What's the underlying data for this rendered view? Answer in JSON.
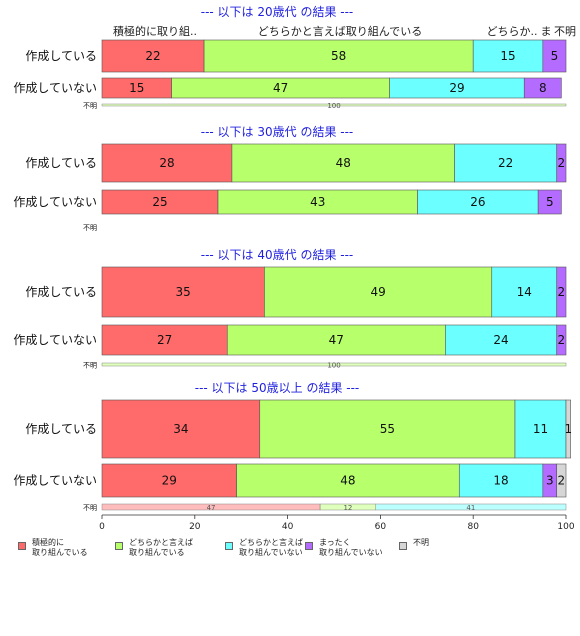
{
  "chart_data": {
    "type": "bar",
    "orientation": "horizontal",
    "stacked": true,
    "xlim": [
      0,
      100
    ],
    "xticks": [
      "0",
      "20",
      "40",
      "60",
      "80",
      "100"
    ],
    "category_names": [
      "積極的に取り組んでいる",
      "どちらかと言えば取り組んでいる",
      "どちらかと言えば取り組んでいない",
      "まったく取り組んでいない",
      "不明"
    ],
    "colors": [
      "#FF6B6B",
      "#B7FF6B",
      "#6BFFFF",
      "#B46BFF",
      "#D6D6D6"
    ],
    "header_labels": [
      "積極的に取り組..",
      "どちらかと言えば取り組んでいる",
      "どちらか..",
      "ま",
      "不明"
    ],
    "groups": [
      {
        "title": "--- 以下は 20歳代 の結果 ---",
        "rows": [
          {
            "label": "作成している",
            "values": [
              22,
              58,
              15,
              5,
              0
            ]
          },
          {
            "label": "作成していない",
            "values": [
              15,
              47,
              29,
              8,
              0
            ]
          }
        ],
        "unknown": {
          "label": "不明",
          "values": [
            0,
            100,
            0,
            0,
            0
          ]
        }
      },
      {
        "title": "--- 以下は 30歳代 の結果 ---",
        "rows": [
          {
            "label": "作成している",
            "values": [
              28,
              48,
              22,
              2,
              0
            ]
          },
          {
            "label": "作成していない",
            "values": [
              25,
              43,
              26,
              5,
              0
            ]
          }
        ],
        "unknown": {
          "label": "不明",
          "values": [
            0,
            0,
            0,
            0,
            0
          ]
        }
      },
      {
        "title": "--- 以下は 40歳代 の結果 ---",
        "rows": [
          {
            "label": "作成している",
            "values": [
              35,
              49,
              14,
              2,
              0
            ]
          },
          {
            "label": "作成していない",
            "values": [
              27,
              47,
              24,
              2,
              0
            ]
          }
        ],
        "unknown": {
          "label": "不明",
          "values": [
            0,
            100,
            0,
            0,
            0
          ]
        }
      },
      {
        "title": "--- 以下は 50歳以上 の結果 ---",
        "rows": [
          {
            "label": "作成している",
            "values": [
              34,
              55,
              11,
              0,
              1
            ]
          },
          {
            "label": "作成していない",
            "values": [
              29,
              48,
              18,
              3,
              2
            ]
          }
        ],
        "unknown": {
          "label": "不明",
          "values": [
            47,
            12,
            41,
            0,
            0
          ]
        }
      }
    ],
    "legend": [
      "積極的に\n取り組んでいる",
      "どちらかと言えば\n取り組んでいる",
      "どちらかと言えば\n取り組んでいない",
      "まったく\n取り組んでいない",
      "不明"
    ]
  }
}
